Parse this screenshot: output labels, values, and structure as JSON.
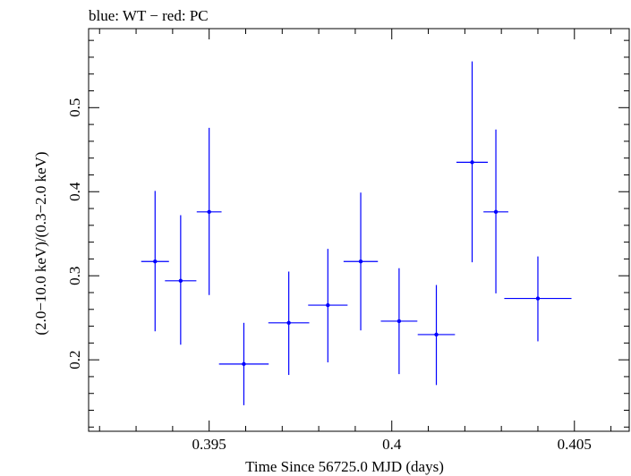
{
  "chart_data": {
    "type": "scatter",
    "title": "blue: WT − red: PC",
    "xlabel": "Time Since 56725.0 MJD (days)",
    "ylabel": "(2.0−10.0 keV)/(0.3−2.0 keV)",
    "xlim": [
      0.3917,
      0.4065
    ],
    "ylim": [
      0.115,
      0.594
    ],
    "x_major_ticks": [
      0.395,
      0.4,
      0.405
    ],
    "x_tick_labels": [
      "0.395",
      "0.4",
      "0.405"
    ],
    "y_major_ticks": [
      0.2,
      0.3,
      0.4,
      0.5
    ],
    "y_tick_labels": [
      "0.2",
      "0.3",
      "0.4",
      "0.5"
    ],
    "series": [
      {
        "name": "WT",
        "color": "#0000ff",
        "points": [
          {
            "x": 0.39352,
            "xerr": 0.00038,
            "y": 0.317,
            "ylo": 0.234,
            "yhi": 0.401
          },
          {
            "x": 0.39422,
            "xerr": 0.00043,
            "y": 0.294,
            "ylo": 0.218,
            "yhi": 0.372
          },
          {
            "x": 0.395,
            "xerr": 0.00034,
            "y": 0.376,
            "ylo": 0.277,
            "yhi": 0.476
          },
          {
            "x": 0.39595,
            "xerr": 0.00068,
            "y": 0.195,
            "ylo": 0.146,
            "yhi": 0.244
          },
          {
            "x": 0.39718,
            "xerr": 0.00056,
            "y": 0.244,
            "ylo": 0.182,
            "yhi": 0.305
          },
          {
            "x": 0.39825,
            "xerr": 0.00054,
            "y": 0.265,
            "ylo": 0.197,
            "yhi": 0.332
          },
          {
            "x": 0.39915,
            "xerr": 0.00047,
            "y": 0.317,
            "ylo": 0.235,
            "yhi": 0.399
          },
          {
            "x": 0.4002,
            "xerr": 0.0005,
            "y": 0.246,
            "ylo": 0.183,
            "yhi": 0.309
          },
          {
            "x": 0.40122,
            "xerr": 0.00051,
            "y": 0.23,
            "ylo": 0.17,
            "yhi": 0.289
          },
          {
            "x": 0.4022,
            "xerr": 0.00043,
            "y": 0.435,
            "ylo": 0.316,
            "yhi": 0.555
          },
          {
            "x": 0.40285,
            "xerr": 0.00034,
            "y": 0.376,
            "ylo": 0.279,
            "yhi": 0.474
          },
          {
            "x": 0.404,
            "xerr": 0.00092,
            "y": 0.273,
            "ylo": 0.222,
            "yhi": 0.323
          }
        ]
      }
    ]
  }
}
